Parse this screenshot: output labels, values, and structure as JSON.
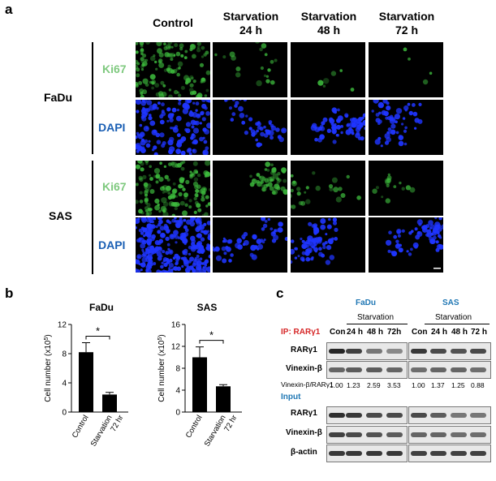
{
  "panel_a": {
    "letter": "a",
    "columns": [
      "Control",
      "Starvation\n24 h",
      "Starvation\n48 h",
      "Starvation\n72 h"
    ],
    "rows": [
      {
        "cell_line": "FaDu",
        "stains": [
          "Ki67",
          "DAPI"
        ]
      },
      {
        "cell_line": "SAS",
        "stains": [
          "Ki67",
          "DAPI"
        ]
      }
    ],
    "colors": {
      "ki67": "#7fc97f",
      "dapi": "#1a5fb4",
      "green_signal": "#3dbb3d",
      "blue_signal": "#1f35ff"
    }
  },
  "panel_b": {
    "letter": "b",
    "y_label": "Cell number (x10",
    "y_sup": "5",
    "y_label_end": ")",
    "sig_mark": "*"
  },
  "chart_data": [
    {
      "type": "bar",
      "title": "FaDu",
      "categories": [
        "Control",
        "Starvation\n72 hr"
      ],
      "values": [
        8.2,
        2.4
      ],
      "errors": [
        1.3,
        0.3
      ],
      "ylim": [
        0,
        12
      ],
      "yticks": [
        0,
        4,
        8,
        12
      ],
      "ylabel": "Cell number (x10^5)",
      "significance": "*"
    },
    {
      "type": "bar",
      "title": "SAS",
      "categories": [
        "Control",
        "Starvation\n72 hr"
      ],
      "values": [
        10.0,
        4.7
      ],
      "errors": [
        1.9,
        0.3
      ],
      "ylim": [
        0,
        16
      ],
      "yticks": [
        0,
        4,
        8,
        12,
        16
      ],
      "ylabel": "Cell number (x10^5)",
      "significance": "*"
    }
  ],
  "panel_c": {
    "letter": "c",
    "fadu_title": "FaDu",
    "sas_title": "SAS",
    "starvation": "Starvation",
    "lanes": [
      "Con",
      "24 h",
      "48 h",
      "72h"
    ],
    "lanes_sas": [
      "Con",
      "24 h",
      "48 h",
      "72 h"
    ],
    "ip_label": "IP: RARγ1",
    "input_label": "Input",
    "ip_rows": [
      "RARγ1",
      "Vinexin-β"
    ],
    "ratio_label": "Vinexin-β/RARγ1",
    "ratios_fadu": [
      "1.00",
      "1.23",
      "2.59",
      "3.53"
    ],
    "ratios_sas": [
      "1.00",
      "1.37",
      "1.25",
      "0.88"
    ],
    "input_rows": [
      "RARγ1",
      "Vinexin-β",
      "β-actin"
    ],
    "colors": {
      "title": "#1f77b4",
      "ip": "#d62728",
      "input": "#1f77b4"
    }
  }
}
